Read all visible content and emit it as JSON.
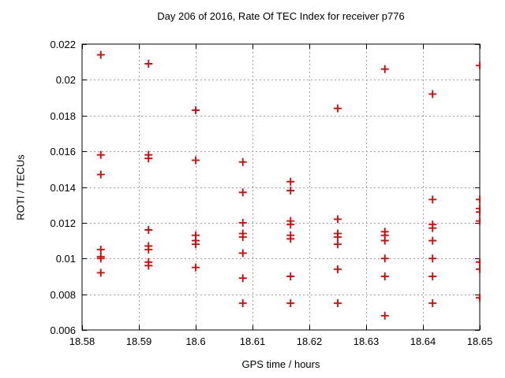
{
  "chart_data": {
    "type": "scatter",
    "title": "Day 206 of 2016, Rate Of TEC Index for receiver p776",
    "xlabel": "GPS time / hours",
    "ylabel": "ROTI / TECUs",
    "xlim": [
      18.58,
      18.65
    ],
    "ylim": [
      0.006,
      0.022
    ],
    "xticks": [
      18.58,
      18.59,
      18.6,
      18.61,
      18.62,
      18.63,
      18.64,
      18.65
    ],
    "yticks": [
      0.006,
      0.008,
      0.01,
      0.012,
      0.014,
      0.016,
      0.018,
      0.02,
      0.022
    ],
    "grid": true,
    "legend_position": "none",
    "marker": "plus",
    "marker_color": "#dd0000",
    "grid_color": "#a0a0a0",
    "frame_color": "#000000",
    "background_color": "#ffffff",
    "series": [
      {
        "name": "ROTI",
        "points": [
          [
            18.5833,
            0.0214
          ],
          [
            18.5833,
            0.0158
          ],
          [
            18.5833,
            0.0147
          ],
          [
            18.5833,
            0.0105
          ],
          [
            18.5833,
            0.0101
          ],
          [
            18.5833,
            0.01
          ],
          [
            18.5833,
            0.0092
          ],
          [
            18.5917,
            0.0209
          ],
          [
            18.5917,
            0.0158
          ],
          [
            18.5917,
            0.0156
          ],
          [
            18.5917,
            0.0116
          ],
          [
            18.5917,
            0.0107
          ],
          [
            18.5917,
            0.0105
          ],
          [
            18.5917,
            0.0098
          ],
          [
            18.5917,
            0.0096
          ],
          [
            18.6,
            0.0183
          ],
          [
            18.6,
            0.0155
          ],
          [
            18.6,
            0.0113
          ],
          [
            18.6,
            0.011
          ],
          [
            18.6,
            0.0108
          ],
          [
            18.6,
            0.0095
          ],
          [
            18.6083,
            0.0154
          ],
          [
            18.6083,
            0.0137
          ],
          [
            18.6083,
            0.012
          ],
          [
            18.6083,
            0.0114
          ],
          [
            18.6083,
            0.0112
          ],
          [
            18.6083,
            0.0103
          ],
          [
            18.6083,
            0.0089
          ],
          [
            18.6083,
            0.0075
          ],
          [
            18.6167,
            0.0143
          ],
          [
            18.6167,
            0.0138
          ],
          [
            18.6167,
            0.0121
          ],
          [
            18.6167,
            0.0119
          ],
          [
            18.6167,
            0.0113
          ],
          [
            18.6167,
            0.0111
          ],
          [
            18.6167,
            0.009
          ],
          [
            18.6167,
            0.0075
          ],
          [
            18.625,
            0.0184
          ],
          [
            18.625,
            0.0122
          ],
          [
            18.625,
            0.0114
          ],
          [
            18.625,
            0.0112
          ],
          [
            18.625,
            0.0108
          ],
          [
            18.625,
            0.0094
          ],
          [
            18.625,
            0.0075
          ],
          [
            18.6333,
            0.0206
          ],
          [
            18.6333,
            0.0115
          ],
          [
            18.6333,
            0.0113
          ],
          [
            18.6333,
            0.011
          ],
          [
            18.6333,
            0.01
          ],
          [
            18.6333,
            0.009
          ],
          [
            18.6333,
            0.0068
          ],
          [
            18.6417,
            0.0192
          ],
          [
            18.6417,
            0.0133
          ],
          [
            18.6417,
            0.0119
          ],
          [
            18.6417,
            0.0117
          ],
          [
            18.6417,
            0.011
          ],
          [
            18.6417,
            0.01
          ],
          [
            18.6417,
            0.009
          ],
          [
            18.6417,
            0.0075
          ],
          [
            18.65,
            0.0208
          ],
          [
            18.65,
            0.0133
          ],
          [
            18.65,
            0.0128
          ],
          [
            18.65,
            0.0126
          ],
          [
            18.65,
            0.0121
          ],
          [
            18.65,
            0.0098
          ],
          [
            18.65,
            0.0094
          ],
          [
            18.65,
            0.0078
          ]
        ]
      }
    ]
  }
}
